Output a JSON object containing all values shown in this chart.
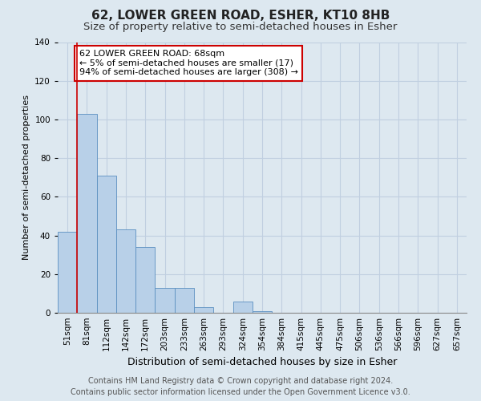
{
  "title": "62, LOWER GREEN ROAD, ESHER, KT10 8HB",
  "subtitle": "Size of property relative to semi-detached houses in Esher",
  "xlabel": "Distribution of semi-detached houses by size in Esher",
  "ylabel": "Number of semi-detached properties",
  "footer_line1": "Contains HM Land Registry data © Crown copyright and database right 2024.",
  "footer_line2": "Contains public sector information licensed under the Open Government Licence v3.0.",
  "bar_labels": [
    "51sqm",
    "81sqm",
    "112sqm",
    "142sqm",
    "172sqm",
    "203sqm",
    "233sqm",
    "263sqm",
    "293sqm",
    "324sqm",
    "354sqm",
    "384sqm",
    "415sqm",
    "445sqm",
    "475sqm",
    "506sqm",
    "536sqm",
    "566sqm",
    "596sqm",
    "627sqm",
    "657sqm"
  ],
  "bar_values": [
    42,
    103,
    71,
    43,
    34,
    13,
    13,
    3,
    0,
    6,
    1,
    0,
    0,
    0,
    0,
    0,
    0,
    0,
    0,
    0,
    0
  ],
  "bar_color": "#b8d0e8",
  "bar_edgecolor": "#5a8fc0",
  "marker_line_color": "#cc0000",
  "annotation_title": "62 LOWER GREEN ROAD: 68sqm",
  "annotation_line1": "← 5% of semi-detached houses are smaller (17)",
  "annotation_line2": "94% of semi-detached houses are larger (308) →",
  "annotation_box_facecolor": "#ffffff",
  "annotation_box_edgecolor": "#cc0000",
  "ylim": [
    0,
    140
  ],
  "yticks": [
    0,
    20,
    40,
    60,
    80,
    100,
    120,
    140
  ],
  "background_color": "#dde8f0",
  "plot_bg_color": "#dde8f0",
  "grid_color": "#c0cfe0",
  "title_fontsize": 11,
  "subtitle_fontsize": 9.5,
  "xlabel_fontsize": 9,
  "ylabel_fontsize": 8,
  "tick_fontsize": 7.5,
  "annotation_fontsize": 8,
  "footer_fontsize": 7
}
